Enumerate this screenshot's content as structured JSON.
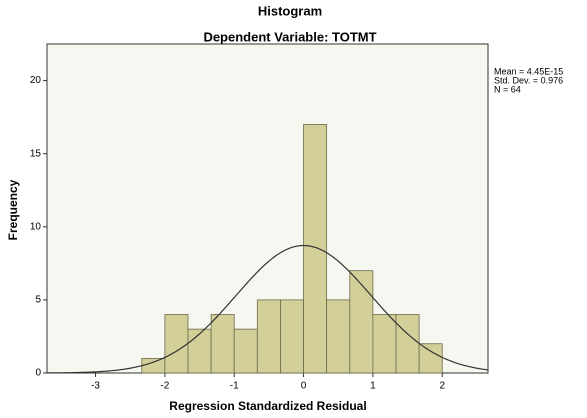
{
  "chart_data": {
    "type": "histogram",
    "title": "Histogram",
    "subtitle": "Dependent Variable: TOTMT",
    "x_label": "Regression Standardized Residual",
    "y_label": "Frequency",
    "bins": [
      -2.333,
      -2.0,
      -1.667,
      -1.333,
      -1.0,
      -0.667,
      -0.333,
      0.0,
      0.333,
      0.667,
      1.0,
      1.333,
      1.667,
      2.0
    ],
    "counts": [
      1,
      4,
      3,
      4,
      3,
      5,
      5,
      17,
      5,
      7,
      4,
      4,
      2
    ],
    "color": "#d3cf98",
    "xlim": [
      -3.7,
      2.66
    ],
    "xticks": [
      -3,
      -2,
      -1,
      0,
      1,
      2
    ],
    "ylim": [
      0,
      22.5
    ],
    "yticks": [
      0,
      5,
      10,
      15,
      20
    ],
    "normal_curve": true,
    "stats": [
      {
        "value": 4.45e-15,
        "label": "Mean = 4.45E-15"
      },
      {
        "value": 0.976,
        "label": "Std. Dev. = 0.976"
      },
      {
        "value": 64,
        "label": "N = 64"
      }
    ]
  }
}
